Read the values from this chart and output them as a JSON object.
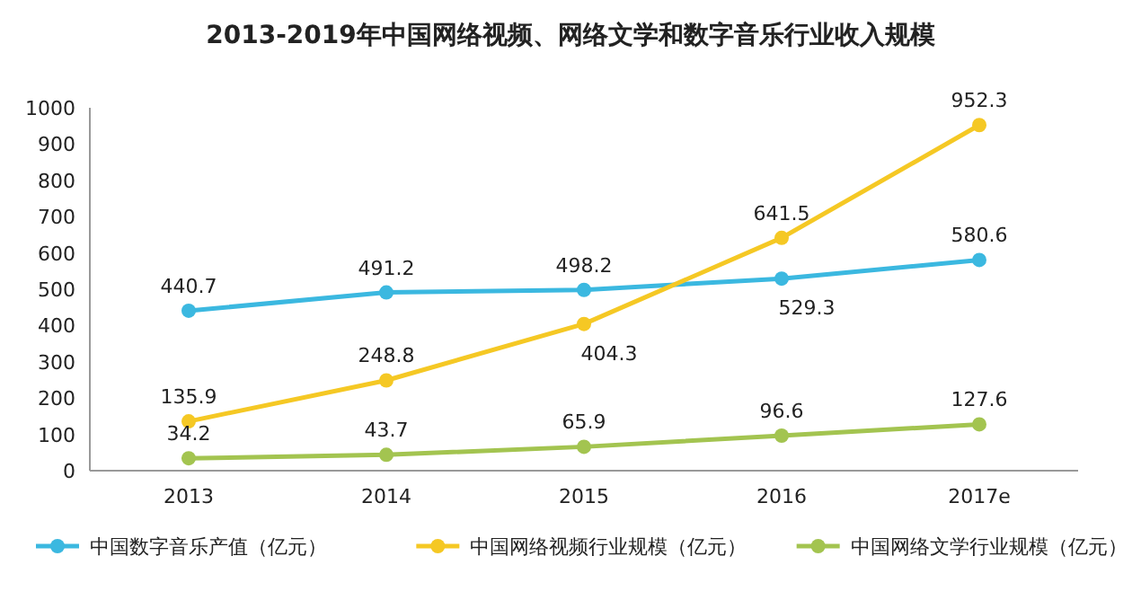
{
  "chart_data": {
    "type": "line",
    "title": "2013-2019年中国网络视频、网络文学和数字音乐行业收入规模",
    "categories": [
      "2013",
      "2014",
      "2015",
      "2016",
      "2017e"
    ],
    "series": [
      {
        "name": "中国数字音乐产值（亿元）",
        "color": "#3bb8e0",
        "values": [
          440.7,
          491.2,
          498.2,
          529.3,
          580.6
        ]
      },
      {
        "name": "中国网络视频行业规模（亿元）",
        "color": "#f5c824",
        "values": [
          135.9,
          248.8,
          404.3,
          641.5,
          952.3
        ]
      },
      {
        "name": "中国网络文学行业规模（亿元）",
        "color": "#a3c450",
        "values": [
          34.2,
          43.7,
          65.9,
          96.6,
          127.6
        ]
      }
    ],
    "ylim": [
      0,
      1000
    ],
    "yticks": [
      0,
      100,
      200,
      300,
      400,
      500,
      600,
      700,
      800,
      900,
      1000
    ],
    "data_labels": true,
    "marker": "circle",
    "legend": "bottom",
    "grid": false
  }
}
